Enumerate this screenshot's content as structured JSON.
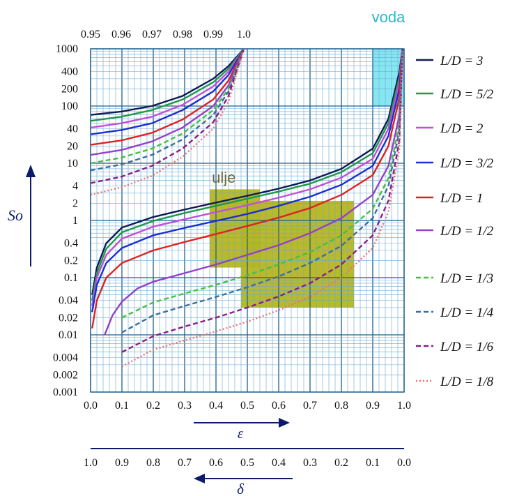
{
  "chart_data": {
    "type": "line",
    "y_scale": "log",
    "ylabel": "So",
    "xlabel": "ε",
    "x2label": "δ",
    "xlim": [
      0.0,
      1.0
    ],
    "ylim": [
      0.001,
      1000
    ],
    "grid": true,
    "legend_position": "right",
    "x_ticks": [
      "0.0",
      "0.1",
      "0.2",
      "0.3",
      "0.4",
      "0.5",
      "0.6",
      "0.7",
      "0.8",
      "0.9",
      "1.0"
    ],
    "delta_ticks": [
      "1.0",
      "0.9",
      "0.8",
      "0.7",
      "0.6",
      "0.5",
      "0.4",
      "0.3",
      "0.2",
      "0.1",
      "0.0"
    ],
    "top_ticks": [
      "0.95",
      "0.96",
      "0.97",
      "0.98",
      "0.99",
      "1.0"
    ],
    "y_ticks": [
      "1000",
      "400",
      "200",
      "100",
      "40",
      "20",
      "10",
      "4",
      "2",
      "1",
      "0.4",
      "0.2",
      "0.1",
      "0.04",
      "0.02",
      "0.01",
      "0.004",
      "0.002",
      "0.001"
    ],
    "regions": [
      {
        "label": "voda",
        "color": "#7fe6f0",
        "text_color": "#2bb8d0",
        "x_range": [
          0.9,
          1.0
        ],
        "y_range": [
          100,
          1000
        ]
      },
      {
        "label": "ulje",
        "color": "#b5b51f",
        "text_color": "#6b6b3a",
        "parts": [
          {
            "x_range": [
              0.38,
              0.54
            ],
            "y_range": [
              0.15,
              3.5
            ]
          },
          {
            "x_range": [
              0.48,
              0.84
            ],
            "y_range": [
              0.03,
              2.2
            ]
          }
        ]
      }
    ],
    "series": [
      {
        "name": "L/D = 3",
        "color": "#0e1a55",
        "dash": "solid",
        "main": [
          [
            0.005,
            0.05
          ],
          [
            0.02,
            0.15
          ],
          [
            0.05,
            0.4
          ],
          [
            0.1,
            0.75
          ],
          [
            0.2,
            1.15
          ],
          [
            0.3,
            1.55
          ],
          [
            0.4,
            2.05
          ],
          [
            0.5,
            2.7
          ],
          [
            0.6,
            3.6
          ],
          [
            0.7,
            5.0
          ],
          [
            0.8,
            8.0
          ],
          [
            0.9,
            18
          ],
          [
            0.95,
            60
          ],
          [
            0.985,
            400
          ],
          [
            0.995,
            1000
          ]
        ],
        "upper": [
          [
            0.95,
            70
          ],
          [
            0.96,
            80
          ],
          [
            0.97,
            100
          ],
          [
            0.98,
            150
          ],
          [
            0.99,
            300
          ],
          [
            0.995,
            500
          ],
          [
            1.0,
            1000
          ]
        ]
      },
      {
        "name": "L/D = 5/2",
        "color": "#1c9a4a",
        "dash": "solid",
        "main": [
          [
            0.005,
            0.04
          ],
          [
            0.02,
            0.12
          ],
          [
            0.05,
            0.32
          ],
          [
            0.1,
            0.62
          ],
          [
            0.2,
            0.98
          ],
          [
            0.3,
            1.35
          ],
          [
            0.4,
            1.8
          ],
          [
            0.5,
            2.4
          ],
          [
            0.6,
            3.2
          ],
          [
            0.7,
            4.4
          ],
          [
            0.8,
            7.0
          ],
          [
            0.9,
            15
          ],
          [
            0.95,
            50
          ],
          [
            0.985,
            320
          ],
          [
            0.995,
            1000
          ]
        ],
        "upper": [
          [
            0.95,
            55
          ],
          [
            0.96,
            65
          ],
          [
            0.97,
            85
          ],
          [
            0.98,
            130
          ],
          [
            0.99,
            260
          ],
          [
            0.995,
            450
          ],
          [
            1.0,
            1000
          ]
        ]
      },
      {
        "name": "L/D = 2",
        "color": "#c050d8",
        "dash": "solid",
        "main": [
          [
            0.005,
            0.032
          ],
          [
            0.02,
            0.1
          ],
          [
            0.05,
            0.25
          ],
          [
            0.1,
            0.48
          ],
          [
            0.2,
            0.78
          ],
          [
            0.3,
            1.05
          ],
          [
            0.4,
            1.4
          ],
          [
            0.5,
            1.85
          ],
          [
            0.6,
            2.5
          ],
          [
            0.7,
            3.5
          ],
          [
            0.8,
            5.6
          ],
          [
            0.9,
            12
          ],
          [
            0.95,
            40
          ],
          [
            0.985,
            260
          ],
          [
            0.995,
            1000
          ]
        ],
        "upper": [
          [
            0.95,
            42
          ],
          [
            0.96,
            50
          ],
          [
            0.97,
            65
          ],
          [
            0.98,
            105
          ],
          [
            0.99,
            220
          ],
          [
            0.995,
            400
          ],
          [
            1.0,
            1000
          ]
        ]
      },
      {
        "name": "L/D = 3/2",
        "color": "#1a2fd0",
        "dash": "solid",
        "main": [
          [
            0.005,
            0.025
          ],
          [
            0.02,
            0.075
          ],
          [
            0.05,
            0.18
          ],
          [
            0.1,
            0.33
          ],
          [
            0.2,
            0.55
          ],
          [
            0.3,
            0.74
          ],
          [
            0.4,
            0.98
          ],
          [
            0.5,
            1.3
          ],
          [
            0.6,
            1.8
          ],
          [
            0.7,
            2.6
          ],
          [
            0.8,
            4.2
          ],
          [
            0.9,
            9
          ],
          [
            0.95,
            30
          ],
          [
            0.985,
            200
          ],
          [
            0.995,
            1000
          ]
        ],
        "upper": [
          [
            0.95,
            32
          ],
          [
            0.96,
            38
          ],
          [
            0.97,
            50
          ],
          [
            0.98,
            85
          ],
          [
            0.99,
            180
          ],
          [
            0.995,
            350
          ],
          [
            1.0,
            1000
          ]
        ]
      },
      {
        "name": "L/D = 1",
        "color": "#dd2222",
        "dash": "solid",
        "main": [
          [
            0.005,
            0.013
          ],
          [
            0.02,
            0.04
          ],
          [
            0.05,
            0.1
          ],
          [
            0.1,
            0.18
          ],
          [
            0.2,
            0.3
          ],
          [
            0.3,
            0.42
          ],
          [
            0.4,
            0.58
          ],
          [
            0.5,
            0.8
          ],
          [
            0.6,
            1.12
          ],
          [
            0.7,
            1.65
          ],
          [
            0.8,
            2.8
          ],
          [
            0.9,
            6.2
          ],
          [
            0.95,
            20
          ],
          [
            0.985,
            140
          ],
          [
            0.995,
            1000
          ]
        ],
        "upper": [
          [
            0.95,
            21
          ],
          [
            0.96,
            25
          ],
          [
            0.97,
            34
          ],
          [
            0.98,
            58
          ],
          [
            0.99,
            130
          ],
          [
            0.995,
            280
          ],
          [
            1.0,
            1000
          ]
        ]
      },
      {
        "name": "L/D = 1/2",
        "color": "#9440c8",
        "dash": "solid",
        "main": [
          [
            0.045,
            0.01
          ],
          [
            0.07,
            0.022
          ],
          [
            0.1,
            0.038
          ],
          [
            0.15,
            0.065
          ],
          [
            0.2,
            0.085
          ],
          [
            0.3,
            0.12
          ],
          [
            0.4,
            0.17
          ],
          [
            0.5,
            0.25
          ],
          [
            0.6,
            0.37
          ],
          [
            0.7,
            0.6
          ],
          [
            0.8,
            1.1
          ],
          [
            0.9,
            2.8
          ],
          [
            0.95,
            9
          ],
          [
            0.985,
            70
          ],
          [
            0.995,
            1000
          ]
        ],
        "upper": [
          [
            0.95,
            14
          ],
          [
            0.96,
            17
          ],
          [
            0.97,
            24
          ],
          [
            0.98,
            42
          ],
          [
            0.99,
            100
          ],
          [
            0.995,
            230
          ],
          [
            1.0,
            1000
          ]
        ]
      },
      {
        "name": "L/D = 1/3",
        "color": "#44c044",
        "dash": "dashed",
        "main": [
          [
            0.1,
            0.02
          ],
          [
            0.2,
            0.037
          ],
          [
            0.3,
            0.053
          ],
          [
            0.4,
            0.075
          ],
          [
            0.5,
            0.11
          ],
          [
            0.6,
            0.17
          ],
          [
            0.7,
            0.28
          ],
          [
            0.8,
            0.55
          ],
          [
            0.9,
            1.6
          ],
          [
            0.95,
            5.5
          ],
          [
            0.985,
            50
          ],
          [
            0.995,
            1000
          ]
        ],
        "upper": [
          [
            0.95,
            10
          ],
          [
            0.96,
            12.5
          ],
          [
            0.97,
            18
          ],
          [
            0.98,
            33
          ],
          [
            0.99,
            85
          ],
          [
            0.995,
            200
          ],
          [
            1.0,
            1000
          ]
        ]
      },
      {
        "name": "L/D = 1/4",
        "color": "#3a6e9e",
        "dash": "dashed",
        "main": [
          [
            0.1,
            0.011
          ],
          [
            0.2,
            0.022
          ],
          [
            0.3,
            0.032
          ],
          [
            0.4,
            0.046
          ],
          [
            0.5,
            0.068
          ],
          [
            0.6,
            0.105
          ],
          [
            0.7,
            0.18
          ],
          [
            0.8,
            0.36
          ],
          [
            0.9,
            1.1
          ],
          [
            0.95,
            4
          ],
          [
            0.985,
            38
          ],
          [
            0.995,
            1000
          ]
        ],
        "upper": [
          [
            0.95,
            7.5
          ],
          [
            0.96,
            9.5
          ],
          [
            0.97,
            14
          ],
          [
            0.98,
            26
          ],
          [
            0.99,
            70
          ],
          [
            0.995,
            180
          ],
          [
            1.0,
            1000
          ]
        ]
      },
      {
        "name": "L/D = 1/6",
        "color": "#8a1c8a",
        "dash": "dashed",
        "main": [
          [
            0.1,
            0.005
          ],
          [
            0.2,
            0.0095
          ],
          [
            0.3,
            0.014
          ],
          [
            0.4,
            0.02
          ],
          [
            0.5,
            0.03
          ],
          [
            0.6,
            0.047
          ],
          [
            0.7,
            0.08
          ],
          [
            0.8,
            0.17
          ],
          [
            0.9,
            0.55
          ],
          [
            0.95,
            2.2
          ],
          [
            0.985,
            25
          ],
          [
            0.995,
            1000
          ]
        ],
        "upper": [
          [
            0.95,
            4.5
          ],
          [
            0.96,
            5.8
          ],
          [
            0.97,
            9
          ],
          [
            0.98,
            18
          ],
          [
            0.99,
            52
          ],
          [
            0.995,
            150
          ],
          [
            1.0,
            1000
          ]
        ]
      },
      {
        "name": "L/D = 1/8",
        "color": "#f07070",
        "dash": "dotted",
        "main": [
          [
            0.1,
            0.0028
          ],
          [
            0.2,
            0.0055
          ],
          [
            0.3,
            0.008
          ],
          [
            0.4,
            0.0115
          ],
          [
            0.5,
            0.017
          ],
          [
            0.6,
            0.027
          ],
          [
            0.7,
            0.046
          ],
          [
            0.8,
            0.1
          ],
          [
            0.9,
            0.33
          ],
          [
            0.95,
            1.4
          ],
          [
            0.985,
            18
          ],
          [
            0.995,
            1000
          ]
        ],
        "upper": [
          [
            0.95,
            2.8
          ],
          [
            0.96,
            3.8
          ],
          [
            0.97,
            6
          ],
          [
            0.98,
            13
          ],
          [
            0.99,
            40
          ],
          [
            0.995,
            120
          ],
          [
            1.0,
            1000
          ]
        ]
      }
    ]
  }
}
